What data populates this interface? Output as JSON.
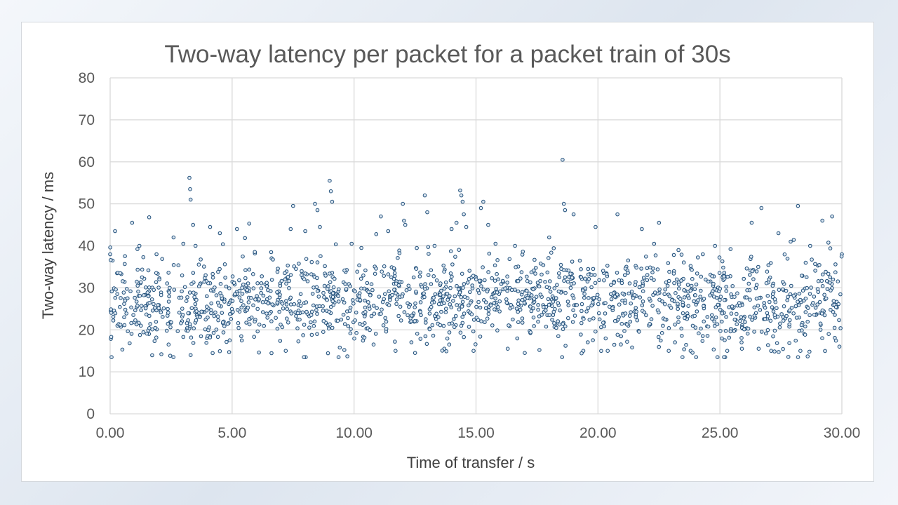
{
  "chart_data": {
    "type": "scatter",
    "title": "Two-way latency per packet for a packet train of 30s",
    "xlabel": "Time of transfer / s",
    "ylabel": "Two-way latency / ms",
    "xlim": [
      0,
      30
    ],
    "ylim": [
      0,
      80
    ],
    "x_ticks": [
      "0.00",
      "5.00",
      "10.00",
      "15.00",
      "20.00",
      "25.00",
      "30.00"
    ],
    "y_ticks": [
      "0",
      "10",
      "20",
      "30",
      "40",
      "50",
      "60",
      "70",
      "80"
    ],
    "grid": true,
    "legend": "none",
    "marker_color": "#1f4e79",
    "marker_fill": "#dbe6f1",
    "series": [
      {
        "points": [
          [
            0.0,
            38.0
          ],
          [
            0.1,
            36.5
          ],
          [
            0.2,
            43.5
          ],
          [
            0.3,
            21.0
          ],
          [
            0.5,
            15.3
          ],
          [
            0.8,
            16.8
          ],
          [
            0.9,
            45.5
          ],
          [
            1.2,
            40.0
          ],
          [
            1.6,
            46.8
          ],
          [
            1.9,
            38.0
          ],
          [
            2.1,
            14.2
          ],
          [
            2.6,
            42.0
          ],
          [
            3.0,
            40.5
          ],
          [
            3.25,
            56.2
          ],
          [
            3.28,
            53.5
          ],
          [
            3.3,
            51.0
          ],
          [
            3.3,
            14.0
          ],
          [
            3.4,
            45.0
          ],
          [
            3.5,
            40.0
          ],
          [
            4.1,
            44.5
          ],
          [
            4.5,
            43.0
          ],
          [
            4.9,
            17.5
          ],
          [
            5.2,
            44.0
          ],
          [
            5.7,
            45.3
          ],
          [
            6.1,
            14.6
          ],
          [
            6.6,
            38.5
          ],
          [
            7.2,
            15.0
          ],
          [
            7.4,
            44.0
          ],
          [
            7.5,
            49.5
          ],
          [
            8.0,
            43.5
          ],
          [
            8.4,
            50.0
          ],
          [
            8.5,
            48.5
          ],
          [
            8.6,
            44.5
          ],
          [
            9.0,
            55.5
          ],
          [
            9.05,
            53.0
          ],
          [
            9.1,
            50.5
          ],
          [
            9.6,
            15.2
          ],
          [
            9.9,
            40.5
          ],
          [
            10.3,
            39.5
          ],
          [
            10.8,
            16.5
          ],
          [
            11.1,
            47.0
          ],
          [
            11.4,
            43.5
          ],
          [
            11.7,
            15.0
          ],
          [
            12.0,
            50.0
          ],
          [
            12.05,
            46.0
          ],
          [
            12.1,
            45.0
          ],
          [
            12.5,
            14.5
          ],
          [
            12.9,
            52.0
          ],
          [
            13.0,
            48.0
          ],
          [
            13.3,
            40.0
          ],
          [
            13.7,
            15.5
          ],
          [
            14.0,
            44.0
          ],
          [
            14.2,
            45.5
          ],
          [
            14.35,
            53.2
          ],
          [
            14.4,
            52.0
          ],
          [
            14.45,
            50.5
          ],
          [
            14.5,
            47.5
          ],
          [
            14.6,
            44.5
          ],
          [
            14.9,
            15.0
          ],
          [
            15.2,
            49.0
          ],
          [
            15.3,
            50.5
          ],
          [
            15.5,
            45.0
          ],
          [
            15.8,
            40.5
          ],
          [
            16.3,
            15.5
          ],
          [
            16.6,
            40.0
          ],
          [
            17.0,
            14.5
          ],
          [
            17.6,
            15.2
          ],
          [
            18.0,
            42.0
          ],
          [
            18.55,
            60.5
          ],
          [
            18.6,
            50.0
          ],
          [
            18.65,
            48.5
          ],
          [
            19.0,
            47.5
          ],
          [
            19.4,
            15.0
          ],
          [
            19.9,
            44.5
          ],
          [
            20.4,
            15.0
          ],
          [
            20.8,
            47.5
          ],
          [
            21.4,
            15.8
          ],
          [
            21.8,
            44.0
          ],
          [
            22.3,
            40.5
          ],
          [
            22.5,
            45.5
          ],
          [
            22.9,
            15.0
          ],
          [
            23.3,
            39.0
          ],
          [
            23.8,
            15.0
          ],
          [
            24.3,
            38.0
          ],
          [
            24.8,
            40.0
          ],
          [
            24.9,
            13.5
          ],
          [
            25.3,
            15.0
          ],
          [
            25.9,
            15.5
          ],
          [
            26.3,
            45.5
          ],
          [
            26.7,
            49.0
          ],
          [
            27.1,
            15.0
          ],
          [
            27.4,
            43.0
          ],
          [
            27.9,
            41.0
          ],
          [
            28.2,
            49.5
          ],
          [
            28.3,
            15.0
          ],
          [
            28.7,
            40.0
          ],
          [
            29.2,
            46.0
          ],
          [
            29.6,
            47.0
          ],
          [
            29.9,
            16.0
          ],
          [
            30.0,
            38.0
          ]
        ]
      }
    ],
    "dense_bands": [
      {
        "x_start": 0,
        "x_end": 5,
        "center": 26.0,
        "spread": 5.0,
        "count": 280
      },
      {
        "x_start": 5,
        "x_end": 10,
        "center": 26.5,
        "spread": 5.0,
        "count": 280
      },
      {
        "x_start": 10,
        "x_end": 15,
        "center": 27.0,
        "spread": 5.0,
        "count": 280
      },
      {
        "x_start": 15,
        "x_end": 20,
        "center": 27.5,
        "spread": 5.0,
        "count": 280
      },
      {
        "x_start": 20,
        "x_end": 25,
        "center": 26.5,
        "spread": 5.0,
        "count": 280
      },
      {
        "x_start": 25,
        "x_end": 30,
        "center": 26.5,
        "spread": 5.5,
        "count": 280
      }
    ]
  }
}
